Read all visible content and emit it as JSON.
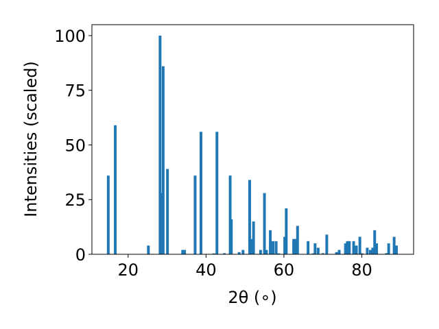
{
  "chart_data": {
    "type": "bar",
    "title": "",
    "xlabel": "2θ (∘)",
    "ylabel": "Intensities (scaled)",
    "xlim": [
      10.7,
      93.3
    ],
    "ylim": [
      0,
      105
    ],
    "xticks": [
      20,
      40,
      60,
      80
    ],
    "yticks": [
      0,
      25,
      50,
      75,
      100
    ],
    "xtick_labels": [
      "20",
      "40",
      "60",
      "80"
    ],
    "ytick_labels": [
      "0",
      "25",
      "50",
      "75",
      "100"
    ],
    "grid": false,
    "legend": "none",
    "bar_color": "#1f77b4",
    "bar_width": 0.7,
    "x": [
      14.9,
      16.7,
      25.2,
      28.2,
      28.5,
      29.0,
      30.1,
      34.0,
      34.5,
      37.2,
      38.7,
      42.0,
      42.8,
      44.7,
      46.2,
      46.5,
      48.5,
      49.5,
      51.2,
      51.7,
      52.2,
      54.0,
      55.0,
      55.5,
      56.5,
      57.2,
      58.0,
      58.7,
      60.2,
      60.6,
      62.5,
      63.0,
      63.5,
      66.2,
      67.5,
      68.0,
      68.8,
      70.0,
      71.0,
      73.5,
      74.2,
      75.8,
      76.3,
      76.8,
      77.9,
      78.6,
      79.5,
      80.1,
      81.4,
      82.2,
      82.8,
      83.3,
      83.8,
      86.3,
      86.9,
      88.3,
      88.9
    ],
    "values": [
      36,
      59,
      4,
      100,
      28,
      86,
      39,
      2,
      2,
      36,
      56,
      0.4,
      56,
      0.5,
      36,
      16,
      1,
      2,
      34,
      7,
      15,
      2,
      28,
      2,
      11,
      6,
      6,
      0.4,
      8,
      21,
      7,
      7,
      13,
      6,
      0.4,
      5,
      3,
      0.5,
      9,
      1,
      2,
      5,
      6,
      6,
      6,
      4,
      8,
      0.4,
      3,
      2,
      3,
      11,
      5,
      0.5,
      5,
      8,
      4
    ]
  }
}
